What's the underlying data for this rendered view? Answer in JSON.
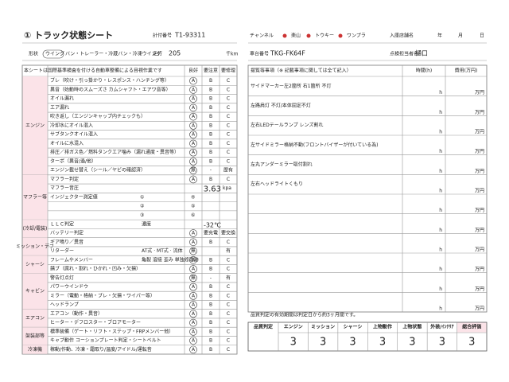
{
  "header": {
    "title": "① トラック状態シート",
    "reg_label": "計付番号",
    "reg_no": "T1-93311",
    "channel_label": "チャンネル",
    "channels": [
      "楽山",
      "トウキー",
      "ワンプラ"
    ],
    "store_label": "入庫店舗名",
    "date": [
      "年",
      "月",
      "日"
    ],
    "shape_label": "形状",
    "shape": "ウイング",
    "shape_others": "バン・トレーラー・冷蔵バン・冷凍ウイング",
    "mileage_label": "走行",
    "mileage": "205",
    "mileage_unit": "千km",
    "chassis_label": "車台番号",
    "chassis": "TKG-FK64F",
    "inspector_label": "点検担当者名",
    "inspector": "樋口"
  },
  "left": {
    "note": "本シートは国際基準検査を付ける自動車整備による目視作業です",
    "col_headers": [
      "良好",
      "要注意",
      "要修理"
    ],
    "sections": [
      {
        "name": "エンジン",
        "rows": [
          {
            "label": "ブレ（吹け・引っ掛かり・レスポンス・ハンチング等）",
            "options": [
              "A",
              "B",
              "C"
            ],
            "mark": 0
          },
          {
            "label": "異音（始動時のスムーズさ カムシャフト・エアワ音等）",
            "options": [
              "A",
              "B",
              "C"
            ],
            "mark": 0
          },
          {
            "label": "オイル漏れ",
            "options": [
              "A",
              "B",
              "C"
            ],
            "mark": 0
          },
          {
            "label": "エア漏れ",
            "options": [
              "A",
              "B",
              "C"
            ],
            "mark": 0
          },
          {
            "label": "吹き返し（エンジンキャップ内チェックも）",
            "options": [
              "A",
              "B",
              "C"
            ],
            "mark": 0
          },
          {
            "label": "冷却水にオイル混入",
            "options": [
              "A",
              "B",
              "C"
            ],
            "mark": 0
          },
          {
            "label": "サブタンクオイル混入",
            "options": [
              "A",
              "B",
              "C"
            ],
            "mark": 0
          },
          {
            "label": "オイルに水混入",
            "options": [
              "A",
              "B",
              "C"
            ],
            "mark": 0
          },
          {
            "label": "排圧／排ガス色／燃料タンクエア噛み（漏れ通度・異音等）",
            "options": [
              "A",
              "B",
              "C"
            ],
            "mark": 0
          },
          {
            "label": "ターボ（異音/過/他）",
            "options": [
              "A",
              "B",
              "C"
            ],
            "mark": 0
          },
          {
            "label": "エンジン載せ替え（シール／ヤビの確認済）",
            "options": [
              "無",
              "-",
              "歴有"
            ],
            "mark": 0
          }
        ]
      },
      {
        "name": "マフラー等",
        "rows": [
          {
            "label": "マフラー判定",
            "options": [
              "A",
              "B",
              "C"
            ],
            "mark": 0
          },
          {
            "label": "マフラー音圧",
            "value": "3.63",
            "unit": "kpa"
          },
          {
            "label": "インジェクター測定値",
            "slots": [
              "①",
              "④"
            ]
          },
          {
            "slots": [
              "②",
              "⑤"
            ]
          },
          {
            "slots": [
              "③",
              "⑥"
            ]
          }
        ]
      },
      {
        "name": "(冷却/電装)",
        "rows": [
          {
            "label": "ＬＬＣ判定",
            "extra": "濃度",
            "value": "-32℃"
          },
          {
            "label": "バッテリー判定",
            "options": [
              "A",
              "要充電",
              "要交換"
            ],
            "mark": 0
          }
        ]
      },
      {
        "name": "ミッション・デフ",
        "rows": [
          {
            "label": "ギア鳴り／異音",
            "options": [
              "A",
              "B",
              "C"
            ],
            "mark": 0
          },
          {
            "label": "リターダー",
            "extra": "AT式 · MT式 · 流体",
            "options": [
              "無",
              "有"
            ],
            "mark": 0
          }
        ]
      },
      {
        "name": "シャーシ",
        "rows": [
          {
            "label": "フレームやメンバー",
            "extra": "亀裂 溶接 歪み 単独修理跡",
            "options": [
              "A",
              "B",
              "C"
            ],
            "mark": 0
          },
          {
            "label": "錆ブ（腐れ・割れ・ひかれ・凹み・欠損）",
            "options": [
              "A",
              "B",
              "C"
            ],
            "mark": 0
          }
        ]
      },
      {
        "name": "キャビン",
        "rows": [
          {
            "label": "警告灯点灯",
            "options": [
              "無",
              "-",
              "有"
            ],
            "mark": 0
          },
          {
            "label": "パワーウインドウ",
            "options": [
              "A",
              "B",
              "C"
            ],
            "mark": 0
          },
          {
            "label": "ミラー（電動・格納・ブレ・欠損・ワイパー等）",
            "options": [
              "A",
              "B",
              "C"
            ],
            "mark": 0
          },
          {
            "label": "ヘッドランプ",
            "options": [
              "A",
              "B",
              "C"
            ],
            "mark": 0
          }
        ]
      },
      {
        "name": "エアコン",
        "rows": [
          {
            "label": "エアコン（動作・異音）",
            "options": [
              "A",
              "B",
              "C"
            ],
            "mark": 0
          },
          {
            "label": "ヒーター・デフロスター・ブロアモーター",
            "options": [
              "A",
              "B",
              "C"
            ],
            "mark": 0
          }
        ]
      },
      {
        "name": "架装部等",
        "rows": [
          {
            "label": "標準装備（ゲート・リフト・ステップ・FRPメンバー他）",
            "options": [
              "A",
              "B",
              "C"
            ],
            "mark": 0
          },
          {
            "label": "キャブ動作 コーションプレート判定・シートベルト",
            "options": [
              "A",
              "B",
              "C"
            ],
            "mark": 0
          }
        ]
      },
      {
        "name": "冷凍機",
        "rows": [
          {
            "label": "稼動/作動、冷凍・霜取り/温度/アイドル/運転音",
            "options": [
              "A",
              "B",
              "C"
            ],
            "mark": 0
          }
        ]
      }
    ]
  },
  "right": {
    "header": "提覧等事項（※ 記載事項に関しては全て記入）",
    "col_time": "時間(h)",
    "col_cost": "費用(万円)",
    "hour_unit": "h",
    "cost_unit": "万円",
    "items": [
      "サイドマーカー左2箇所 右1箇所 不灯",
      "左路肩灯 不灯/本体固定不灯",
      "左右LEDテールランプ レンズ割れ",
      "左サイドミラー格納不動(フロントバイザーが付いている為)",
      "左丸アンダーミラー取付割れ",
      "左右ヘッドライトくもり"
    ],
    "footnote": "品質判定の有効期間は判定日から約3ヶ月間です。"
  },
  "scores": {
    "corner": "品質判定",
    "labels": [
      "エンジン",
      "ミッション",
      "シャーシ",
      "上物動作",
      "上物状態",
      "外装/ｲﾝﾃﾘｱ",
      "総合評価"
    ],
    "values": [
      3,
      3,
      3,
      3,
      3,
      3,
      3
    ]
  }
}
